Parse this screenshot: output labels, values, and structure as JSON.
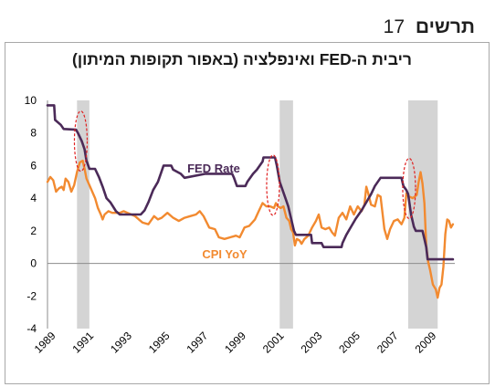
{
  "header": {
    "word": "תרשים",
    "number": "17"
  },
  "chart_data": {
    "type": "line",
    "title": "ריבית ה-FED ואינפלציה (באפור תקופות המיתון)",
    "xlabel": "",
    "ylabel": "",
    "xlim": [
      1989.0,
      2010.4
    ],
    "ylim": [
      -4,
      10
    ],
    "y_ticks": [
      10,
      8,
      6,
      4,
      2,
      0,
      -2,
      -4
    ],
    "x_ticks": [
      "1989",
      "1991",
      "1993",
      "1995",
      "1997",
      "1999",
      "2001",
      "2003",
      "2005",
      "2007",
      "2009"
    ],
    "grid": false,
    "legend": "none",
    "recessions": [
      [
        1990.55,
        1991.2
      ],
      [
        2001.2,
        2001.9
      ],
      [
        2007.95,
        2009.5
      ]
    ],
    "highlight_ellipses": [
      {
        "x": 1990.75,
        "y": 7.5
      },
      {
        "x": 2000.85,
        "y": 4.8
      },
      {
        "x": 2008.0,
        "y": 4.6
      }
    ],
    "series": [
      {
        "name": "FED Rate",
        "color": "#4b2a58",
        "points": [
          [
            1989.0,
            9.7
          ],
          [
            1989.35,
            9.7
          ],
          [
            1989.4,
            8.8
          ],
          [
            1989.7,
            8.5
          ],
          [
            1989.85,
            8.25
          ],
          [
            1990.5,
            8.2
          ],
          [
            1990.6,
            8.0
          ],
          [
            1990.8,
            7.5
          ],
          [
            1990.95,
            7.0
          ],
          [
            1991.05,
            6.3
          ],
          [
            1991.2,
            5.8
          ],
          [
            1991.5,
            5.8
          ],
          [
            1991.7,
            5.3
          ],
          [
            1991.9,
            4.7
          ],
          [
            1992.1,
            4.0
          ],
          [
            1992.3,
            3.75
          ],
          [
            1992.6,
            3.2
          ],
          [
            1992.8,
            3.0
          ],
          [
            1993.0,
            3.0
          ],
          [
            1993.9,
            3.0
          ],
          [
            1994.1,
            3.25
          ],
          [
            1994.3,
            3.75
          ],
          [
            1994.55,
            4.5
          ],
          [
            1994.8,
            5.0
          ],
          [
            1994.95,
            5.5
          ],
          [
            1995.1,
            6.0
          ],
          [
            1995.5,
            6.0
          ],
          [
            1995.6,
            5.75
          ],
          [
            1996.0,
            5.5
          ],
          [
            1996.2,
            5.25
          ],
          [
            1997.3,
            5.5
          ],
          [
            1998.7,
            5.5
          ],
          [
            1998.8,
            5.25
          ],
          [
            1998.95,
            4.75
          ],
          [
            1999.4,
            4.75
          ],
          [
            1999.5,
            5.0
          ],
          [
            1999.8,
            5.5
          ],
          [
            2000.0,
            5.75
          ],
          [
            2000.3,
            6.25
          ],
          [
            2000.35,
            6.5
          ],
          [
            2000.95,
            6.5
          ],
          [
            2001.05,
            6.0
          ],
          [
            2001.2,
            5.0
          ],
          [
            2001.35,
            4.5
          ],
          [
            2001.5,
            4.0
          ],
          [
            2001.65,
            3.5
          ],
          [
            2001.75,
            3.0
          ],
          [
            2001.85,
            2.5
          ],
          [
            2001.95,
            2.0
          ],
          [
            2002.05,
            1.75
          ],
          [
            2002.85,
            1.75
          ],
          [
            2002.9,
            1.25
          ],
          [
            2003.4,
            1.25
          ],
          [
            2003.5,
            1.0
          ],
          [
            2004.45,
            1.0
          ],
          [
            2004.5,
            1.25
          ],
          [
            2004.7,
            1.75
          ],
          [
            2004.95,
            2.25
          ],
          [
            2005.2,
            2.75
          ],
          [
            2005.5,
            3.25
          ],
          [
            2005.75,
            3.75
          ],
          [
            2006.0,
            4.25
          ],
          [
            2006.2,
            4.75
          ],
          [
            2006.5,
            5.25
          ],
          [
            2007.6,
            5.25
          ],
          [
            2007.7,
            4.75
          ],
          [
            2007.85,
            4.5
          ],
          [
            2007.95,
            4.25
          ],
          [
            2008.1,
            3.0
          ],
          [
            2008.25,
            2.25
          ],
          [
            2008.35,
            2.0
          ],
          [
            2008.7,
            2.0
          ],
          [
            2008.8,
            1.5
          ],
          [
            2008.9,
            1.0
          ],
          [
            2008.97,
            0.25
          ],
          [
            2010.3,
            0.25
          ]
        ]
      },
      {
        "name": "CPI YoY",
        "color": "#f28a30",
        "points": [
          [
            1989.0,
            5.0
          ],
          [
            1989.15,
            5.3
          ],
          [
            1989.3,
            5.1
          ],
          [
            1989.45,
            4.4
          ],
          [
            1989.6,
            4.6
          ],
          [
            1989.75,
            4.7
          ],
          [
            1989.85,
            4.5
          ],
          [
            1989.95,
            5.2
          ],
          [
            1990.1,
            5.0
          ],
          [
            1990.25,
            4.4
          ],
          [
            1990.4,
            4.8
          ],
          [
            1990.55,
            5.6
          ],
          [
            1990.7,
            6.2
          ],
          [
            1990.85,
            6.3
          ],
          [
            1990.95,
            5.8
          ],
          [
            1991.05,
            5.2
          ],
          [
            1991.2,
            4.8
          ],
          [
            1991.35,
            4.4
          ],
          [
            1991.5,
            4.0
          ],
          [
            1991.65,
            3.4
          ],
          [
            1991.8,
            3.0
          ],
          [
            1991.9,
            2.7
          ],
          [
            1992.0,
            3.0
          ],
          [
            1992.2,
            3.2
          ],
          [
            1992.4,
            3.1
          ],
          [
            1992.6,
            3.1
          ],
          [
            1992.8,
            3.1
          ],
          [
            1993.0,
            3.2
          ],
          [
            1993.2,
            3.1
          ],
          [
            1993.4,
            3.0
          ],
          [
            1993.6,
            2.9
          ],
          [
            1993.8,
            2.7
          ],
          [
            1994.0,
            2.5
          ],
          [
            1994.3,
            2.4
          ],
          [
            1994.6,
            2.9
          ],
          [
            1994.8,
            2.7
          ],
          [
            1995.0,
            2.8
          ],
          [
            1995.3,
            3.1
          ],
          [
            1995.6,
            2.8
          ],
          [
            1995.9,
            2.6
          ],
          [
            1996.2,
            2.8
          ],
          [
            1996.5,
            2.9
          ],
          [
            1996.8,
            3.0
          ],
          [
            1997.0,
            3.2
          ],
          [
            1997.2,
            2.9
          ],
          [
            1997.5,
            2.2
          ],
          [
            1997.8,
            2.1
          ],
          [
            1998.0,
            1.6
          ],
          [
            1998.3,
            1.5
          ],
          [
            1998.6,
            1.6
          ],
          [
            1998.9,
            1.7
          ],
          [
            1999.1,
            1.6
          ],
          [
            1999.35,
            2.2
          ],
          [
            1999.6,
            2.3
          ],
          [
            1999.9,
            2.7
          ],
          [
            2000.1,
            3.2
          ],
          [
            2000.3,
            3.7
          ],
          [
            2000.5,
            3.5
          ],
          [
            2000.7,
            3.5
          ],
          [
            2000.9,
            3.4
          ],
          [
            2001.0,
            3.7
          ],
          [
            2001.1,
            3.5
          ],
          [
            2001.25,
            3.4
          ],
          [
            2001.4,
            3.5
          ],
          [
            2001.55,
            2.8
          ],
          [
            2001.7,
            2.6
          ],
          [
            2001.8,
            2.1
          ],
          [
            2001.9,
            1.9
          ],
          [
            2002.0,
            1.1
          ],
          [
            2002.1,
            1.5
          ],
          [
            2002.25,
            1.4
          ],
          [
            2002.35,
            1.2
          ],
          [
            2002.5,
            1.5
          ],
          [
            2002.7,
            1.7
          ],
          [
            2002.9,
            2.2
          ],
          [
            2003.1,
            2.6
          ],
          [
            2003.25,
            3.0
          ],
          [
            2003.4,
            2.2
          ],
          [
            2003.6,
            2.1
          ],
          [
            2003.8,
            2.2
          ],
          [
            2003.95,
            1.9
          ],
          [
            2004.1,
            1.7
          ],
          [
            2004.3,
            2.8
          ],
          [
            2004.5,
            3.1
          ],
          [
            2004.7,
            2.7
          ],
          [
            2004.9,
            3.5
          ],
          [
            2005.1,
            3.0
          ],
          [
            2005.3,
            3.5
          ],
          [
            2005.5,
            3.2
          ],
          [
            2005.65,
            3.6
          ],
          [
            2005.75,
            4.7
          ],
          [
            2005.85,
            4.3
          ],
          [
            2006.0,
            3.6
          ],
          [
            2006.2,
            3.5
          ],
          [
            2006.35,
            4.2
          ],
          [
            2006.5,
            4.1
          ],
          [
            2006.7,
            2.1
          ],
          [
            2006.85,
            1.5
          ],
          [
            2007.0,
            2.1
          ],
          [
            2007.2,
            2.6
          ],
          [
            2007.4,
            2.7
          ],
          [
            2007.6,
            2.4
          ],
          [
            2007.75,
            2.8
          ],
          [
            2007.85,
            4.3
          ],
          [
            2008.0,
            4.1
          ],
          [
            2008.2,
            4.0
          ],
          [
            2008.4,
            4.2
          ],
          [
            2008.5,
            5.0
          ],
          [
            2008.6,
            5.6
          ],
          [
            2008.7,
            4.9
          ],
          [
            2008.8,
            3.7
          ],
          [
            2008.9,
            1.1
          ],
          [
            2009.0,
            0.1
          ],
          [
            2009.1,
            -0.4
          ],
          [
            2009.25,
            -1.3
          ],
          [
            2009.4,
            -1.6
          ],
          [
            2009.5,
            -2.1
          ],
          [
            2009.6,
            -1.5
          ],
          [
            2009.7,
            -1.3
          ],
          [
            2009.8,
            -0.2
          ],
          [
            2009.9,
            1.8
          ],
          [
            2010.0,
            2.7
          ],
          [
            2010.1,
            2.6
          ],
          [
            2010.2,
            2.2
          ],
          [
            2010.3,
            2.4
          ]
        ]
      }
    ]
  }
}
